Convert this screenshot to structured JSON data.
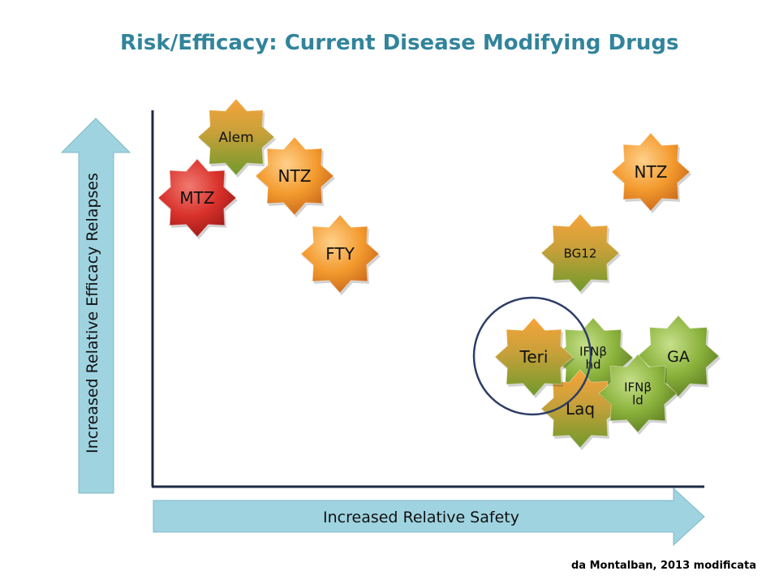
{
  "title": "Risk/Efficacy: Current Disease Modifying Drugs",
  "credit": "da Montalban, 2013 modificata",
  "axes": {
    "x_label": "Increased Relative Safety",
    "y_label": "Increased Relative Efficacy Relapses"
  },
  "colors": {
    "orange": "#F39A2E",
    "green": "#8BB23C",
    "red": "#D9312B",
    "blend_orange_green": "#B5A23A",
    "arrow_fill": "#9FD3E0",
    "axis": "#1F2A44",
    "circle": "#2E3E66"
  },
  "drugs": [
    {
      "id": "alem",
      "label": "Alem",
      "color": "blend_orange_green"
    },
    {
      "id": "ntz1",
      "label": "NTZ",
      "color": "orange"
    },
    {
      "id": "mtz",
      "label": "MTZ",
      "color": "red"
    },
    {
      "id": "fty",
      "label": "FTY",
      "color": "orange"
    },
    {
      "id": "ntz2",
      "label": "NTZ",
      "color": "orange"
    },
    {
      "id": "bg12",
      "label": "BG12",
      "color": "blend_orange_green"
    },
    {
      "id": "ga",
      "label": "GA",
      "color": "green"
    },
    {
      "id": "ifnhd",
      "label": "IFNβ\nhd",
      "color": "green"
    },
    {
      "id": "laq",
      "label": "Laq",
      "color": "blend_orange_green"
    },
    {
      "id": "ifnld",
      "label": "IFNβ\nld",
      "color": "green"
    },
    {
      "id": "teri",
      "label": "Teri",
      "color": "blend_orange_green"
    }
  ]
}
